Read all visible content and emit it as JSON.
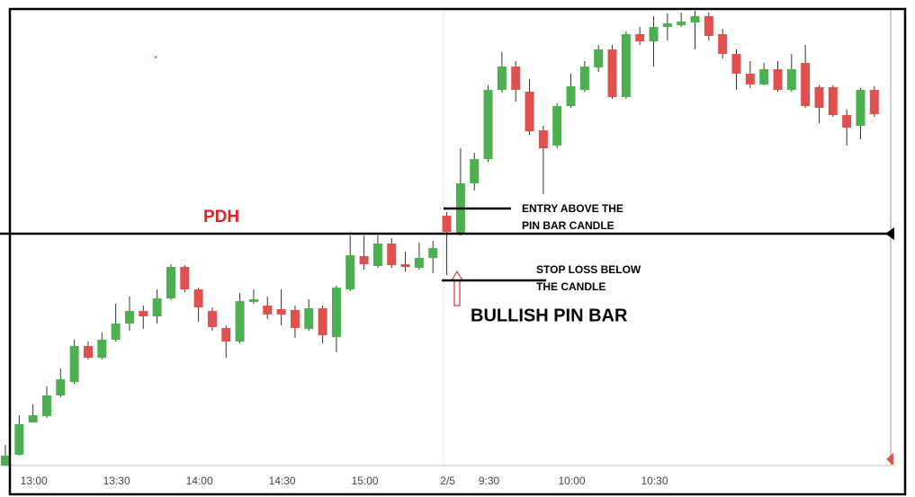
{
  "chart_data": {
    "type": "candlestick",
    "categories": [
      null,
      null,
      "13:00",
      null,
      null,
      null,
      null,
      null,
      "13:30",
      null,
      null,
      null,
      null,
      null,
      "14:00",
      null,
      null,
      null,
      null,
      null,
      "14:30",
      null,
      null,
      null,
      null,
      null,
      "15:00",
      null,
      null,
      null,
      null,
      null,
      "2/5",
      null,
      null,
      "9:30",
      null,
      null,
      null,
      null,
      null,
      "10:00",
      null,
      null,
      null,
      null,
      null,
      "10:30",
      null,
      null,
      null,
      null,
      null,
      null,
      null,
      null,
      null,
      null,
      null,
      null,
      null,
      null,
      null,
      null
    ],
    "open": [
      0,
      12,
      48,
      55,
      78,
      93,
      133,
      120,
      140,
      158,
      172,
      166,
      186,
      221,
      196,
      172,
      153,
      138,
      182,
      178,
      174,
      173,
      152,
      175,
      143,
      196,
      233,
      222,
      247,
      224,
      220,
      231,
      278,
      258,
      314,
      341,
      418,
      444,
      416,
      373,
      356,
      400,
      418,
      443,
      463,
      410,
      480,
      472,
      488,
      490,
      493,
      500,
      480,
      458,
      436,
      424,
      441,
      418,
      448,
      421,
      421,
      390,
      378,
      418
    ],
    "high": [
      23,
      56,
      68,
      88,
      108,
      140,
      138,
      148,
      180,
      188,
      178,
      196,
      224,
      223,
      198,
      176,
      156,
      192,
      196,
      188,
      196,
      178,
      185,
      178,
      200,
      256,
      256,
      256,
      253,
      238,
      248,
      250,
      282,
      353,
      348,
      423,
      460,
      450,
      430,
      378,
      403,
      436,
      450,
      468,
      468,
      483,
      488,
      500,
      503,
      504,
      506,
      504,
      486,
      463,
      450,
      448,
      450,
      458,
      468,
      423,
      423,
      396,
      420,
      422
    ],
    "low": [
      0,
      11,
      48,
      53,
      76,
      91,
      118,
      118,
      138,
      150,
      152,
      158,
      184,
      193,
      160,
      150,
      120,
      136,
      180,
      163,
      156,
      142,
      150,
      136,
      126,
      194,
      218,
      220,
      220,
      216,
      218,
      214,
      212,
      256,
      306,
      338,
      415,
      405,
      368,
      302,
      353,
      398,
      416,
      438,
      408,
      408,
      468,
      444,
      473,
      488,
      463,
      473,
      453,
      418,
      420,
      423,
      416,
      416,
      398,
      381,
      388,
      356,
      363,
      388
    ],
    "close": [
      11,
      46,
      56,
      78,
      96,
      133,
      120,
      140,
      158,
      172,
      166,
      186,
      221,
      196,
      176,
      154,
      138,
      183,
      185,
      168,
      168,
      153,
      175,
      145,
      198,
      234,
      224,
      247,
      223,
      221,
      231,
      242,
      260,
      314,
      341,
      418,
      444,
      418,
      372,
      353,
      400,
      422,
      444,
      463,
      410,
      480,
      472,
      488,
      492,
      494,
      500,
      478,
      458,
      436,
      424,
      441,
      418,
      441,
      400,
      398,
      390,
      376,
      418,
      391
    ],
    "up_color": "#4cb050",
    "down_color": "#e0504f",
    "ylim": [
      0,
      508
    ],
    "annotations": [
      {
        "text": "PDH",
        "value": 258
      },
      {
        "lines": [
          "ENTRY ABOVE THE",
          "PIN BAR CANDLE"
        ],
        "value": 286
      },
      {
        "lines": [
          "STOP LOSS BELOW",
          "THE CANDLE"
        ],
        "value": 206
      },
      {
        "text": "BULLISH PIN BAR"
      }
    ]
  }
}
